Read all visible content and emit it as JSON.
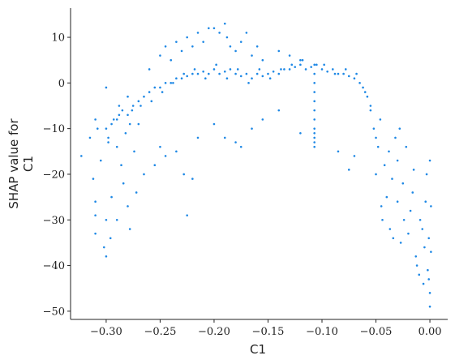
{
  "chart_data": {
    "type": "scatter",
    "xlabel": "C1",
    "ylabel": [
      "SHAP value for",
      "C1"
    ],
    "color": "#1e88e5",
    "xlim": [
      -0.333,
      0.0165
    ],
    "ylim": [
      -51.8,
      16.4
    ],
    "xticks": [
      {
        "value": -0.3,
        "label": "−0.30"
      },
      {
        "value": -0.25,
        "label": "−0.25"
      },
      {
        "value": -0.2,
        "label": "−0.20"
      },
      {
        "value": -0.15,
        "label": "−0.15"
      },
      {
        "value": -0.1,
        "label": "−0.10"
      },
      {
        "value": -0.05,
        "label": "−0.05"
      },
      {
        "value": 0,
        "label": "0.00"
      }
    ],
    "yticks": [
      10,
      0,
      {
        "value": -10,
        "label": "−10"
      },
      {
        "value": -20,
        "label": "−20"
      },
      {
        "value": -30,
        "label": "−30"
      },
      {
        "value": -40,
        "label": "−40"
      },
      {
        "value": -50,
        "label": "−50"
      }
    ],
    "x": [
      -0.323,
      -0.315,
      -0.312,
      -0.31,
      -0.31,
      -0.31,
      -0.31,
      -0.308,
      -0.305,
      -0.302,
      -0.3,
      -0.3,
      -0.3,
      -0.298,
      -0.296,
      -0.295,
      -0.293,
      -0.29,
      -0.29,
      -0.288,
      -0.286,
      -0.284,
      -0.282,
      -0.28,
      -0.28,
      -0.278,
      -0.276,
      -0.274,
      -0.272,
      -0.27,
      -0.3,
      -0.295,
      -0.29,
      -0.285,
      -0.28,
      -0.275,
      -0.27,
      -0.265,
      -0.26,
      -0.255,
      -0.25,
      -0.245,
      -0.24,
      -0.235,
      -0.23,
      -0.225,
      -0.22,
      -0.215,
      -0.21,
      -0.205,
      -0.2,
      -0.195,
      -0.19,
      -0.185,
      -0.18,
      -0.175,
      -0.17,
      -0.165,
      -0.16,
      -0.155,
      -0.15,
      -0.145,
      -0.14,
      -0.135,
      -0.13,
      -0.125,
      -0.12,
      -0.115,
      -0.11,
      -0.105,
      -0.1,
      -0.095,
      -0.09,
      -0.085,
      -0.08,
      -0.075,
      -0.07,
      -0.065,
      -0.06,
      -0.055,
      -0.298,
      -0.288,
      -0.278,
      -0.268,
      -0.258,
      -0.248,
      -0.238,
      -0.228,
      -0.218,
      -0.208,
      -0.198,
      -0.188,
      -0.178,
      -0.168,
      -0.158,
      -0.148,
      -0.138,
      -0.128,
      -0.118,
      -0.098,
      -0.088,
      -0.078,
      -0.068,
      -0.062,
      -0.26,
      -0.25,
      -0.245,
      -0.24,
      -0.235,
      -0.23,
      -0.225,
      -0.22,
      -0.215,
      -0.21,
      -0.205,
      -0.2,
      -0.195,
      -0.19,
      -0.188,
      -0.185,
      -0.18,
      -0.175,
      -0.17,
      -0.165,
      -0.16,
      -0.155,
      -0.14,
      -0.13,
      -0.12,
      -0.265,
      -0.255,
      -0.25,
      -0.245,
      -0.235,
      -0.228,
      -0.225,
      -0.22,
      -0.215,
      -0.2,
      -0.19,
      -0.18,
      -0.175,
      -0.165,
      -0.155,
      -0.14,
      -0.12,
      -0.085,
      -0.075,
      -0.07,
      -0.107,
      -0.107,
      -0.107,
      -0.107,
      -0.107,
      -0.107,
      -0.107,
      -0.107,
      -0.107,
      -0.107,
      -0.107,
      -0.107,
      -0.058,
      -0.055,
      -0.052,
      -0.05,
      -0.05,
      -0.048,
      -0.046,
      -0.045,
      -0.044,
      -0.042,
      -0.04,
      -0.038,
      -0.037,
      -0.035,
      -0.034,
      -0.032,
      -0.03,
      -0.03,
      -0.028,
      -0.027,
      -0.025,
      -0.024,
      -0.022,
      -0.02,
      -0.018,
      -0.016,
      -0.015,
      -0.013,
      -0.012,
      -0.01,
      -0.009,
      -0.007,
      -0.006,
      -0.005,
      -0.004,
      -0.003,
      -0.002,
      -0.001,
      0,
      0,
      0.001,
      0.001,
      0,
      -0.001
    ],
    "values": [
      -16,
      -12,
      -21,
      -26,
      -29,
      -33,
      -8,
      -10,
      -17,
      -36,
      -38,
      -30,
      -1,
      -13,
      -34,
      -25,
      -8,
      -14,
      -30,
      -5,
      -18,
      -22,
      -11,
      -3,
      -27,
      -32,
      -6,
      -15,
      -24,
      -9,
      -10,
      -9,
      -8,
      -6,
      -7,
      -5,
      -4,
      -3,
      -2,
      -1,
      -1,
      0,
      0,
      1,
      1,
      1.5,
      2,
      2,
      2.5,
      2,
      3,
      2,
      2.5,
      3,
      2,
      1.5,
      2,
      1,
      2,
      1.5,
      2,
      2.5,
      2,
      3,
      3,
      3.5,
      4,
      3,
      3.5,
      4,
      3,
      2.5,
      3,
      2,
      2,
      1.5,
      1,
      0,
      -2,
      -5,
      -12,
      -7,
      -9,
      -5,
      -4,
      -2,
      0,
      2,
      3,
      1,
      4,
      1,
      3,
      0,
      3,
      1,
      3,
      4,
      5,
      4,
      2,
      3,
      2,
      -1,
      3,
      6,
      8,
      5,
      9,
      7,
      10,
      8,
      11,
      9,
      12,
      12,
      11,
      13,
      10,
      8,
      7,
      9,
      11,
      6,
      8,
      5,
      7,
      6,
      5,
      -20,
      -18,
      -14,
      -16,
      -15,
      -20,
      -29,
      -21,
      -12,
      -9,
      -12,
      -13,
      -14,
      -10,
      -8,
      -6,
      -11,
      -15,
      -19,
      -16,
      4,
      2,
      0,
      -2,
      -4,
      -6,
      -8,
      -10,
      -12,
      -14,
      -13,
      -11,
      -3,
      -6,
      -10,
      -12,
      -20,
      -14,
      -8,
      -27,
      -30,
      -18,
      -25,
      -15,
      -32,
      -21,
      -34,
      -12,
      -17,
      -26,
      -10,
      -35,
      -22,
      -30,
      -14,
      -33,
      -28,
      -24,
      -19,
      -38,
      -40,
      -42,
      -30,
      -32,
      -44,
      -36,
      -26,
      -20,
      -41,
      -43,
      -46,
      -49,
      -37,
      -27,
      -17,
      -34
    ]
  }
}
